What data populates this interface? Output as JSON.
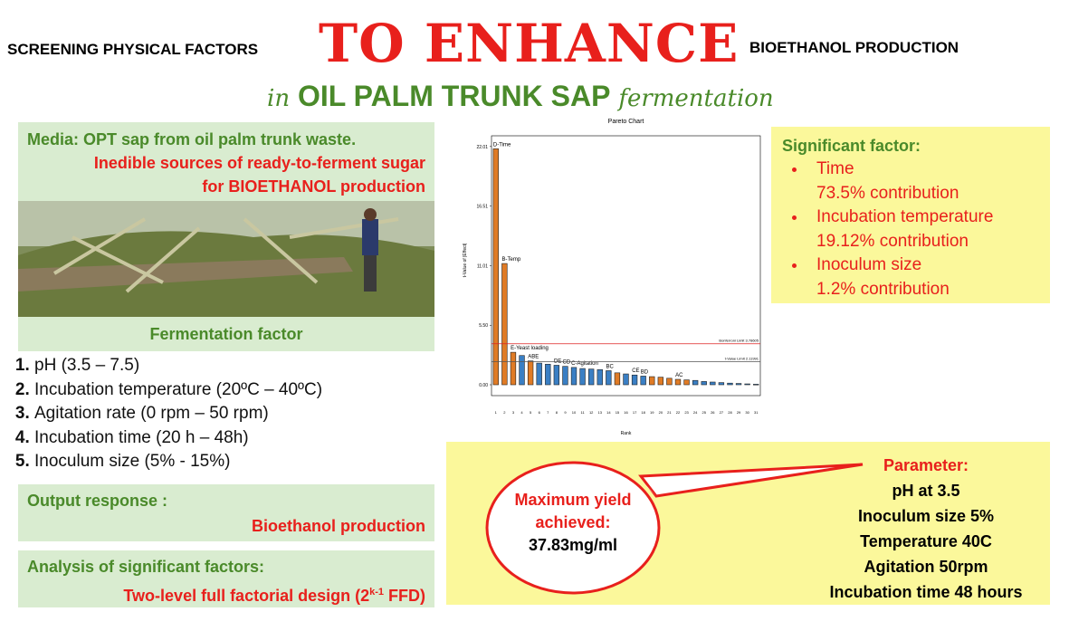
{
  "header": {
    "left": "SCREENING PHYSICAL FACTORS",
    "big": "TO ENHANCE",
    "right": "BIOETHANOL PRODUCTION",
    "line2": {
      "pre": "in",
      "main": "OIL PALM TRUNK SAP",
      "post": "fermentation"
    }
  },
  "media": {
    "line1": "Media: OPT sap from oil palm trunk waste.",
    "line2": "Inedible sources of ready-to-ferment sugar",
    "line3": "for BIOETHANOL production"
  },
  "factors": {
    "title": "Fermentation factor",
    "items": [
      "pH (3.5 – 7.5)",
      "Incubation temperature (20ºC – 40ºC)",
      "Agitation rate (0 rpm – 50  rpm)",
      "Incubation time (20 h – 48h)",
      "Inoculum size (5% - 15%)"
    ]
  },
  "output": {
    "title": "Output response :",
    "value": "Bioethanol production"
  },
  "analysis": {
    "title": "Analysis of significant factors:",
    "text": "Two-level full factorial design (2",
    "sup": "k-1",
    "tail": " FFD)"
  },
  "significant": {
    "title": "Significant factor:",
    "items": [
      {
        "name": "Time",
        "contribution": "73.5% contribution"
      },
      {
        "name": "Incubation temperature",
        "contribution": "19.12% contribution"
      },
      {
        "name": "Inoculum size",
        "contribution": "1.2% contribution"
      }
    ]
  },
  "bubble": {
    "line1": "Maximum yield",
    "line2": "achieved:",
    "value": "37.83mg/ml"
  },
  "parameter": {
    "title": "Parameter:",
    "items": [
      "pH at 3.5",
      "Inoculum size 5%",
      "Temperature 40C",
      "Agitation 50rpm",
      "Incubation time 48 hours"
    ]
  },
  "chart_data": {
    "type": "bar",
    "title": "Pareto Chart",
    "y_label": "t-Value of |Effect|",
    "x_label": "Rank",
    "categories": [
      1,
      2,
      3,
      4,
      5,
      6,
      7,
      8,
      9,
      10,
      11,
      12,
      13,
      14,
      15,
      16,
      17,
      18,
      19,
      20,
      21,
      22,
      23,
      24,
      25,
      26,
      27,
      28,
      29,
      30,
      31
    ],
    "values": [
      21.8,
      11.2,
      3.0,
      2.7,
      2.2,
      2.0,
      1.9,
      1.8,
      1.7,
      1.6,
      1.5,
      1.45,
      1.4,
      1.3,
      1.1,
      1.0,
      0.9,
      0.8,
      0.75,
      0.7,
      0.6,
      0.5,
      0.45,
      0.4,
      0.3,
      0.25,
      0.2,
      0.15,
      0.12,
      0.08,
      0.05
    ],
    "bar_colors": [
      "#e07b25",
      "#e07b25",
      "#e07b25",
      "#3a7fc4",
      "#e07b25",
      "#3a7fc4",
      "#3a7fc4",
      "#3a7fc4",
      "#3a7fc4",
      "#3a7fc4",
      "#3a7fc4",
      "#3a7fc4",
      "#3a7fc4",
      "#3a7fc4",
      "#e07b25",
      "#3a7fc4",
      "#3a7fc4",
      "#3a7fc4",
      "#e07b25",
      "#e07b25",
      "#e07b25",
      "#e07b25",
      "#e07b25",
      "#3a7fc4",
      "#3a7fc4",
      "#3a7fc4",
      "#3a7fc4",
      "#3a7fc4",
      "#3a7fc4",
      "#3a7fc4",
      "#3a7fc4"
    ],
    "bar_labels": [
      "D-Time",
      "B-Temp",
      "E-Yeast loading",
      null,
      "ABE",
      null,
      null,
      "DE",
      "CD",
      "C-Agitation",
      null,
      null,
      null,
      "BC",
      null,
      null,
      "CE",
      "BD",
      null,
      null,
      null,
      "AC",
      null,
      null,
      null,
      null,
      null,
      null,
      null,
      null,
      null
    ],
    "ylim": [
      0,
      23
    ],
    "yticks": [
      {
        "value": 0,
        "label": "0.00"
      },
      {
        "value": 5.5,
        "label": "5.50"
      },
      11.01,
      16.51,
      22.01
    ],
    "ref_lines": [
      {
        "value": 3.78605,
        "label": "Bonferroni Limit 3.78605",
        "color": "#d22"
      },
      {
        "value": 2.11991,
        "label": "t-Value Limit 2.11991",
        "color": "#555"
      }
    ]
  }
}
